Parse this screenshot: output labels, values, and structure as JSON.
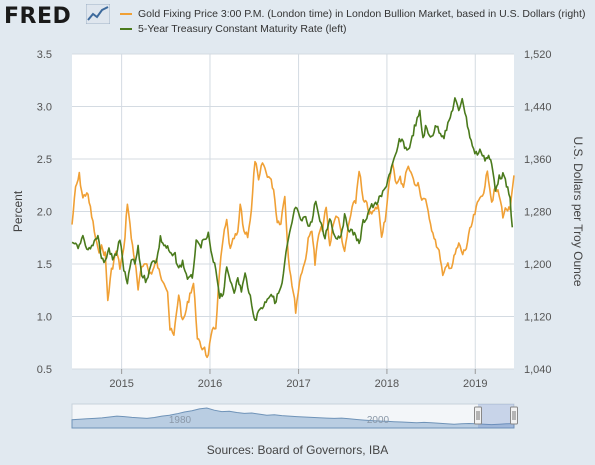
{
  "header": {
    "logo_text": "FRED",
    "logo_mark": "line-chart-icon"
  },
  "footer": {
    "source": "Sources: Board of Governors, IBA"
  },
  "colors": {
    "background": "#e1e9f0",
    "plot_background": "#ffffff",
    "grid": "#d4dbe2",
    "gold_series": "#f0a035",
    "treasury_series": "#4a7a1c",
    "navigator_fill": "#b9cde2",
    "navigator_line": "#6f93b8"
  },
  "chart_data": {
    "type": "line",
    "title": "",
    "x_axis": {
      "label": "",
      "ticks": [
        "2015",
        "2016",
        "2017",
        "2018",
        "2019"
      ],
      "range": [
        "2014-06-10",
        "2019-06-10"
      ]
    },
    "y_axis_left": {
      "label": "Percent",
      "ticks": [
        "0.5",
        "1.0",
        "1.5",
        "2.0",
        "2.5",
        "3.0",
        "3.5"
      ],
      "range": [
        0.5,
        3.5
      ]
    },
    "y_axis_right": {
      "label": "U.S. Dollars per Troy Ounce",
      "ticks": [
        "1,040",
        "1,120",
        "1,200",
        "1,280",
        "1,360",
        "1,440",
        "1,520"
      ],
      "range": [
        1040,
        1520
      ]
    },
    "grid": true,
    "legend_position": "top",
    "series": [
      {
        "name": "Gold Fixing Price 3:00 P.M. (London time) in London Bullion Market, based in U.S. Dollars (right)",
        "axis": "right",
        "points": [
          [
            "2014-06-10",
            1260
          ],
          [
            "2014-06-25",
            1315
          ],
          [
            "2014-07-10",
            1335
          ],
          [
            "2014-07-25",
            1300
          ],
          [
            "2014-08-10",
            1310
          ],
          [
            "2014-08-25",
            1285
          ],
          [
            "2014-09-10",
            1250
          ],
          [
            "2014-09-25",
            1220
          ],
          [
            "2014-10-10",
            1225
          ],
          [
            "2014-10-25",
            1215
          ],
          [
            "2014-11-05",
            1145
          ],
          [
            "2014-11-20",
            1190
          ],
          [
            "2014-12-10",
            1220
          ],
          [
            "2014-12-25",
            1195
          ],
          [
            "2015-01-10",
            1220
          ],
          [
            "2015-01-25",
            1295
          ],
          [
            "2015-02-10",
            1240
          ],
          [
            "2015-02-25",
            1205
          ],
          [
            "2015-03-10",
            1160
          ],
          [
            "2015-03-25",
            1195
          ],
          [
            "2015-04-10",
            1205
          ],
          [
            "2015-04-25",
            1185
          ],
          [
            "2015-05-10",
            1190
          ],
          [
            "2015-05-25",
            1205
          ],
          [
            "2015-06-10",
            1180
          ],
          [
            "2015-06-25",
            1175
          ],
          [
            "2015-07-10",
            1160
          ],
          [
            "2015-07-20",
            1100
          ],
          [
            "2015-08-05",
            1090
          ],
          [
            "2015-08-25",
            1155
          ],
          [
            "2015-09-10",
            1110
          ],
          [
            "2015-09-25",
            1130
          ],
          [
            "2015-10-10",
            1155
          ],
          [
            "2015-10-25",
            1170
          ],
          [
            "2015-11-10",
            1090
          ],
          [
            "2015-11-25",
            1070
          ],
          [
            "2015-12-10",
            1075
          ],
          [
            "2015-12-20",
            1055
          ],
          [
            "2016-01-10",
            1095
          ],
          [
            "2016-01-25",
            1105
          ],
          [
            "2016-02-10",
            1190
          ],
          [
            "2016-02-25",
            1240
          ],
          [
            "2016-03-10",
            1265
          ],
          [
            "2016-03-25",
            1220
          ],
          [
            "2016-04-10",
            1240
          ],
          [
            "2016-04-25",
            1245
          ],
          [
            "2016-05-05",
            1290
          ],
          [
            "2016-05-20",
            1250
          ],
          [
            "2016-06-05",
            1245
          ],
          [
            "2016-06-20",
            1280
          ],
          [
            "2016-07-05",
            1360
          ],
          [
            "2016-07-20",
            1325
          ],
          [
            "2016-08-05",
            1355
          ],
          [
            "2016-08-20",
            1340
          ],
          [
            "2016-09-05",
            1330
          ],
          [
            "2016-09-20",
            1315
          ],
          [
            "2016-10-05",
            1265
          ],
          [
            "2016-10-20",
            1265
          ],
          [
            "2016-11-05",
            1305
          ],
          [
            "2016-11-20",
            1210
          ],
          [
            "2016-12-05",
            1170
          ],
          [
            "2016-12-20",
            1130
          ],
          [
            "2017-01-10",
            1185
          ],
          [
            "2017-01-25",
            1200
          ],
          [
            "2017-02-10",
            1235
          ],
          [
            "2017-02-25",
            1255
          ],
          [
            "2017-03-10",
            1200
          ],
          [
            "2017-03-25",
            1245
          ],
          [
            "2017-04-10",
            1255
          ],
          [
            "2017-04-25",
            1285
          ],
          [
            "2017-05-10",
            1225
          ],
          [
            "2017-05-25",
            1265
          ],
          [
            "2017-06-10",
            1275
          ],
          [
            "2017-06-25",
            1250
          ],
          [
            "2017-07-10",
            1215
          ],
          [
            "2017-07-25",
            1255
          ],
          [
            "2017-08-10",
            1285
          ],
          [
            "2017-08-25",
            1295
          ],
          [
            "2017-09-08",
            1345
          ],
          [
            "2017-09-25",
            1295
          ],
          [
            "2017-10-10",
            1290
          ],
          [
            "2017-10-25",
            1275
          ],
          [
            "2017-11-10",
            1280
          ],
          [
            "2017-11-25",
            1290
          ],
          [
            "2017-12-10",
            1245
          ],
          [
            "2017-12-25",
            1270
          ],
          [
            "2018-01-10",
            1320
          ],
          [
            "2018-01-25",
            1355
          ],
          [
            "2018-02-10",
            1320
          ],
          [
            "2018-02-25",
            1330
          ],
          [
            "2018-03-10",
            1320
          ],
          [
            "2018-03-25",
            1345
          ],
          [
            "2018-04-10",
            1345
          ],
          [
            "2018-04-25",
            1320
          ],
          [
            "2018-05-10",
            1320
          ],
          [
            "2018-05-25",
            1300
          ],
          [
            "2018-06-10",
            1300
          ],
          [
            "2018-06-25",
            1265
          ],
          [
            "2018-07-10",
            1250
          ],
          [
            "2018-07-25",
            1230
          ],
          [
            "2018-08-10",
            1210
          ],
          [
            "2018-08-20",
            1180
          ],
          [
            "2018-09-10",
            1200
          ],
          [
            "2018-09-25",
            1195
          ],
          [
            "2018-10-10",
            1215
          ],
          [
            "2018-10-25",
            1230
          ],
          [
            "2018-11-10",
            1215
          ],
          [
            "2018-11-25",
            1225
          ],
          [
            "2018-12-10",
            1250
          ],
          [
            "2018-12-25",
            1270
          ],
          [
            "2019-01-10",
            1290
          ],
          [
            "2019-01-25",
            1305
          ],
          [
            "2019-02-10",
            1315
          ],
          [
            "2019-02-20",
            1345
          ],
          [
            "2019-03-10",
            1295
          ],
          [
            "2019-03-25",
            1315
          ],
          [
            "2019-04-10",
            1305
          ],
          [
            "2019-04-25",
            1275
          ],
          [
            "2019-05-10",
            1285
          ],
          [
            "2019-05-25",
            1280
          ],
          [
            "2019-06-10",
            1335
          ]
        ]
      },
      {
        "name": "5-Year Treasury Constant Maturity Rate (left)",
        "axis": "left",
        "points": [
          [
            "2014-06-10",
            1.68
          ],
          [
            "2014-06-25",
            1.7
          ],
          [
            "2014-07-10",
            1.66
          ],
          [
            "2014-07-25",
            1.75
          ],
          [
            "2014-08-10",
            1.62
          ],
          [
            "2014-08-25",
            1.64
          ],
          [
            "2014-09-10",
            1.72
          ],
          [
            "2014-09-25",
            1.78
          ],
          [
            "2014-10-10",
            1.55
          ],
          [
            "2014-10-25",
            1.52
          ],
          [
            "2014-11-10",
            1.65
          ],
          [
            "2014-11-25",
            1.54
          ],
          [
            "2014-12-10",
            1.6
          ],
          [
            "2014-12-25",
            1.74
          ],
          [
            "2015-01-10",
            1.45
          ],
          [
            "2015-01-25",
            1.3
          ],
          [
            "2015-02-10",
            1.55
          ],
          [
            "2015-02-25",
            1.5
          ],
          [
            "2015-03-10",
            1.65
          ],
          [
            "2015-03-25",
            1.4
          ],
          [
            "2015-04-10",
            1.35
          ],
          [
            "2015-04-25",
            1.42
          ],
          [
            "2015-05-10",
            1.55
          ],
          [
            "2015-05-25",
            1.52
          ],
          [
            "2015-06-10",
            1.75
          ],
          [
            "2015-06-25",
            1.68
          ],
          [
            "2015-07-10",
            1.65
          ],
          [
            "2015-07-25",
            1.58
          ],
          [
            "2015-08-10",
            1.58
          ],
          [
            "2015-08-25",
            1.45
          ],
          [
            "2015-09-10",
            1.52
          ],
          [
            "2015-09-25",
            1.4
          ],
          [
            "2015-10-05",
            1.35
          ],
          [
            "2015-10-20",
            1.38
          ],
          [
            "2015-11-05",
            1.7
          ],
          [
            "2015-11-20",
            1.67
          ],
          [
            "2015-12-10",
            1.72
          ],
          [
            "2015-12-25",
            1.78
          ],
          [
            "2016-01-10",
            1.55
          ],
          [
            "2016-01-25",
            1.45
          ],
          [
            "2016-02-10",
            1.2
          ],
          [
            "2016-02-25",
            1.22
          ],
          [
            "2016-03-10",
            1.45
          ],
          [
            "2016-03-25",
            1.35
          ],
          [
            "2016-04-10",
            1.25
          ],
          [
            "2016-04-25",
            1.35
          ],
          [
            "2016-05-10",
            1.25
          ],
          [
            "2016-05-25",
            1.4
          ],
          [
            "2016-06-10",
            1.25
          ],
          [
            "2016-06-27",
            1.02
          ],
          [
            "2016-07-10",
            0.98
          ],
          [
            "2016-07-25",
            1.08
          ],
          [
            "2016-08-10",
            1.1
          ],
          [
            "2016-08-25",
            1.18
          ],
          [
            "2016-09-10",
            1.22
          ],
          [
            "2016-09-25",
            1.14
          ],
          [
            "2016-10-10",
            1.22
          ],
          [
            "2016-10-25",
            1.3
          ],
          [
            "2016-11-10",
            1.6
          ],
          [
            "2016-11-25",
            1.78
          ],
          [
            "2016-12-10",
            1.95
          ],
          [
            "2016-12-20",
            2.05
          ],
          [
            "2017-01-10",
            1.9
          ],
          [
            "2017-01-25",
            1.95
          ],
          [
            "2017-02-10",
            1.88
          ],
          [
            "2017-02-25",
            1.9
          ],
          [
            "2017-03-13",
            2.12
          ],
          [
            "2017-03-25",
            1.95
          ],
          [
            "2017-04-10",
            1.82
          ],
          [
            "2017-04-20",
            1.75
          ],
          [
            "2017-05-10",
            1.95
          ],
          [
            "2017-05-25",
            1.8
          ],
          [
            "2017-06-10",
            1.75
          ],
          [
            "2017-06-25",
            1.78
          ],
          [
            "2017-07-10",
            1.95
          ],
          [
            "2017-07-25",
            1.85
          ],
          [
            "2017-08-10",
            1.8
          ],
          [
            "2017-08-25",
            1.78
          ],
          [
            "2017-09-08",
            1.68
          ],
          [
            "2017-09-25",
            1.9
          ],
          [
            "2017-10-10",
            1.95
          ],
          [
            "2017-10-25",
            2.05
          ],
          [
            "2017-11-10",
            2.05
          ],
          [
            "2017-11-25",
            2.1
          ],
          [
            "2017-12-10",
            2.15
          ],
          [
            "2017-12-25",
            2.22
          ],
          [
            "2018-01-10",
            2.35
          ],
          [
            "2018-01-25",
            2.45
          ],
          [
            "2018-02-10",
            2.55
          ],
          [
            "2018-02-21",
            2.68
          ],
          [
            "2018-03-10",
            2.65
          ],
          [
            "2018-03-25",
            2.58
          ],
          [
            "2018-04-10",
            2.65
          ],
          [
            "2018-04-25",
            2.8
          ],
          [
            "2018-05-17",
            2.94
          ],
          [
            "2018-05-30",
            2.7
          ],
          [
            "2018-06-10",
            2.8
          ],
          [
            "2018-06-25",
            2.72
          ],
          [
            "2018-07-10",
            2.74
          ],
          [
            "2018-07-25",
            2.82
          ],
          [
            "2018-08-10",
            2.75
          ],
          [
            "2018-08-25",
            2.72
          ],
          [
            "2018-09-10",
            2.82
          ],
          [
            "2018-09-25",
            2.94
          ],
          [
            "2018-10-09",
            3.07
          ],
          [
            "2018-10-25",
            2.95
          ],
          [
            "2018-11-08",
            3.09
          ],
          [
            "2018-11-25",
            2.88
          ],
          [
            "2018-12-10",
            2.72
          ],
          [
            "2018-12-25",
            2.58
          ],
          [
            "2019-01-10",
            2.55
          ],
          [
            "2019-01-25",
            2.58
          ],
          [
            "2019-02-10",
            2.5
          ],
          [
            "2019-02-25",
            2.52
          ],
          [
            "2019-03-10",
            2.45
          ],
          [
            "2019-03-25",
            2.22
          ],
          [
            "2019-04-10",
            2.32
          ],
          [
            "2019-04-25",
            2.35
          ],
          [
            "2019-05-10",
            2.25
          ],
          [
            "2019-05-25",
            2.12
          ],
          [
            "2019-06-03",
            1.85
          ]
        ]
      }
    ],
    "navigator": {
      "labels": [
        "1980",
        "2000"
      ],
      "selected_range": [
        "2014-06-10",
        "2019-06-10"
      ],
      "profile": [
        0.35,
        0.38,
        0.4,
        0.42,
        0.45,
        0.5,
        0.55,
        0.52,
        0.48,
        0.45,
        0.42,
        0.47,
        0.55,
        0.6,
        0.68,
        0.78,
        0.85,
        0.95,
        1.0,
        0.88,
        0.8,
        0.82,
        0.75,
        0.7,
        0.72,
        0.66,
        0.6,
        0.62,
        0.58,
        0.55,
        0.52,
        0.5,
        0.48,
        0.46,
        0.44,
        0.42,
        0.44,
        0.4,
        0.36,
        0.33,
        0.3,
        0.28,
        0.26,
        0.24,
        0.22,
        0.2,
        0.18,
        0.2,
        0.18,
        0.15,
        0.12,
        0.1,
        0.12,
        0.14,
        0.12,
        0.1,
        0.08,
        0.1,
        0.12,
        0.14
      ]
    }
  }
}
